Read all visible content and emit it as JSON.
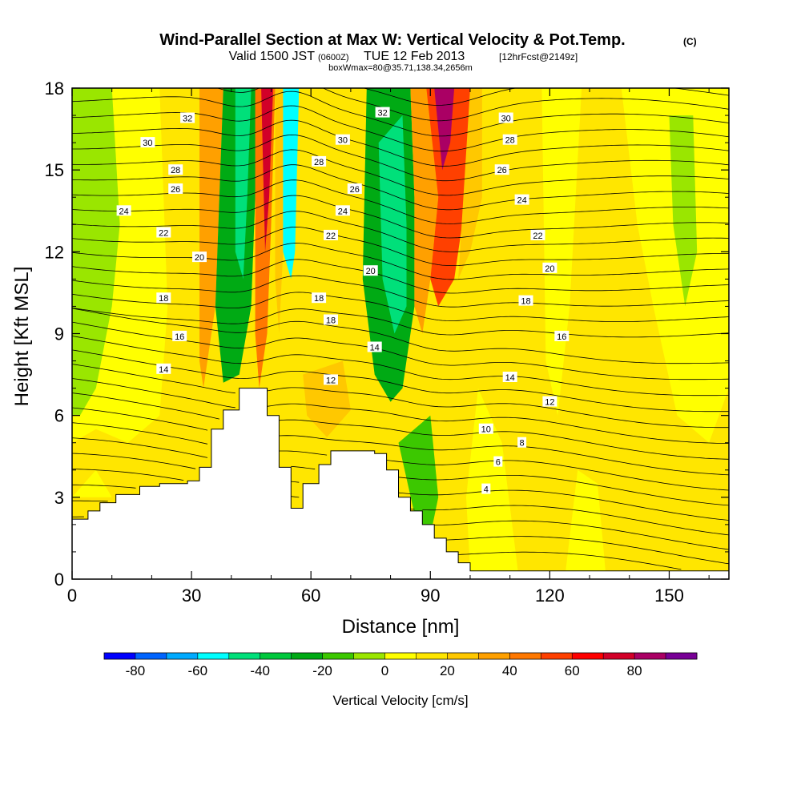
{
  "chart_data": {
    "type": "heatmap",
    "title_main": "Wind-Parallel Section at Max W: Vertical Velocity & Pot.Temp.",
    "title_mark": "(C)",
    "subtitle_valid": "Valid 1500 JST",
    "subtitle_zulu": "(0600Z)",
    "subtitle_date": "TUE 12 Feb 2013",
    "subtitle_fcst": "[12hrFcst@2149z]",
    "subtitle_box": "boxWmax=80@35.71,138.34,2656m",
    "xlabel": "Distance [nm]",
    "ylabel": "Height [Kft MSL]",
    "xlim": [
      0,
      165
    ],
    "ylim": [
      0,
      18
    ],
    "xticks": [
      "0",
      "30",
      "60",
      "90",
      "120",
      "150"
    ],
    "yticks": [
      "0",
      "3",
      "6",
      "9",
      "12",
      "15",
      "18"
    ],
    "colorbar": {
      "label": "Vertical Velocity [cm/s]",
      "ticks": [
        "-80",
        "-60",
        "-40",
        "-20",
        "0",
        "20",
        "40",
        "60",
        "80"
      ],
      "colors": [
        "#0000ff",
        "#0064ff",
        "#00aaff",
        "#00ffff",
        "#00e07a",
        "#00c83c",
        "#00aa14",
        "#3cc800",
        "#9ae600",
        "#ffff00",
        "#ffe600",
        "#ffc800",
        "#ffa000",
        "#ff7800",
        "#ff4000",
        "#ff0000",
        "#d20028",
        "#aa0064",
        "#780096"
      ]
    },
    "terrain": [
      [
        0,
        2.2
      ],
      [
        4,
        2.2
      ],
      [
        4,
        2.5
      ],
      [
        7,
        2.5
      ],
      [
        7,
        2.8
      ],
      [
        11,
        2.8
      ],
      [
        11,
        3.1
      ],
      [
        17,
        3.1
      ],
      [
        17,
        3.4
      ],
      [
        22,
        3.4
      ],
      [
        22,
        3.5
      ],
      [
        29,
        3.5
      ],
      [
        29,
        3.6
      ],
      [
        32,
        3.6
      ],
      [
        32,
        4.1
      ],
      [
        35,
        4.1
      ],
      [
        35,
        5.5
      ],
      [
        38,
        5.5
      ],
      [
        38,
        6.2
      ],
      [
        42,
        6.2
      ],
      [
        42,
        7.0
      ],
      [
        49,
        7.0
      ],
      [
        49,
        6.0
      ],
      [
        52,
        6.0
      ],
      [
        52,
        4.1
      ],
      [
        55,
        4.1
      ],
      [
        55,
        2.6
      ],
      [
        58,
        2.6
      ],
      [
        58,
        3.5
      ],
      [
        62,
        3.5
      ],
      [
        62,
        4.2
      ],
      [
        65,
        4.2
      ],
      [
        65,
        4.7
      ],
      [
        76,
        4.7
      ],
      [
        76,
        4.6
      ],
      [
        79,
        4.6
      ],
      [
        79,
        4.0
      ],
      [
        82,
        4.0
      ],
      [
        82,
        3.0
      ],
      [
        85,
        3.0
      ],
      [
        85,
        2.5
      ],
      [
        88,
        2.5
      ],
      [
        88,
        2.0
      ],
      [
        91,
        2.0
      ],
      [
        91,
        1.5
      ],
      [
        94,
        1.5
      ],
      [
        94,
        1.0
      ],
      [
        97,
        1.0
      ],
      [
        97,
        0.6
      ],
      [
        100,
        0.6
      ],
      [
        100,
        0.3
      ],
      [
        165,
        0.3
      ]
    ],
    "wfield_regions": [
      {
        "value": 10,
        "polygon": [
          [
            0,
            0
          ],
          [
            165,
            0
          ],
          [
            165,
            18
          ],
          [
            0,
            18
          ]
        ]
      },
      {
        "value": 2,
        "polygon": [
          [
            0,
            18
          ],
          [
            22,
            18
          ],
          [
            24,
            10
          ],
          [
            22,
            6
          ],
          [
            14,
            5
          ],
          [
            6,
            5.5
          ],
          [
            0,
            5
          ]
        ]
      },
      {
        "value": -8,
        "polygon": [
          [
            0,
            18
          ],
          [
            10,
            18
          ],
          [
            12,
            13
          ],
          [
            10,
            10
          ],
          [
            6,
            7
          ],
          [
            2,
            6
          ],
          [
            0,
            6
          ]
        ]
      },
      {
        "value": 12,
        "polygon": [
          [
            22,
            18
          ],
          [
            30,
            18
          ],
          [
            30,
            14
          ],
          [
            32,
            10
          ],
          [
            29,
            7
          ],
          [
            26,
            7
          ],
          [
            24,
            10
          ]
        ]
      },
      {
        "value": 30,
        "polygon": [
          [
            32,
            18
          ],
          [
            38,
            18
          ],
          [
            36,
            10
          ],
          [
            33,
            7
          ],
          [
            32,
            8
          ]
        ]
      },
      {
        "value": -28,
        "polygon": [
          [
            38,
            18
          ],
          [
            47,
            18
          ],
          [
            46,
            14
          ],
          [
            45,
            10
          ],
          [
            42,
            7.5
          ],
          [
            38,
            7.2
          ],
          [
            36,
            10
          ]
        ]
      },
      {
        "value": -48,
        "polygon": [
          [
            41,
            18
          ],
          [
            45,
            18
          ],
          [
            44,
            14
          ],
          [
            43,
            11
          ],
          [
            41,
            12
          ]
        ]
      },
      {
        "value": 45,
        "polygon": [
          [
            46,
            18
          ],
          [
            51,
            18
          ],
          [
            50,
            13
          ],
          [
            49,
            9
          ],
          [
            47,
            7
          ],
          [
            46,
            9
          ]
        ]
      },
      {
        "value": 70,
        "polygon": [
          [
            47.5,
            18
          ],
          [
            50.5,
            18
          ],
          [
            49.5,
            14
          ],
          [
            48.5,
            12
          ],
          [
            48,
            15
          ]
        ]
      },
      {
        "value": 22,
        "polygon": [
          [
            51,
            18
          ],
          [
            53,
            18
          ],
          [
            53,
            12
          ],
          [
            52,
            9
          ],
          [
            51,
            11
          ]
        ]
      },
      {
        "value": -52,
        "polygon": [
          [
            53,
            18
          ],
          [
            57,
            18
          ],
          [
            57,
            13
          ],
          [
            55,
            11
          ],
          [
            53,
            12
          ]
        ]
      },
      {
        "value": 12,
        "polygon": [
          [
            57,
            18
          ],
          [
            74,
            18
          ],
          [
            74,
            14
          ],
          [
            72,
            9
          ],
          [
            70,
            6.2
          ],
          [
            64,
            5.5
          ],
          [
            58,
            6.5
          ],
          [
            56,
            9
          ],
          [
            56,
            12
          ]
        ]
      },
      {
        "value": 20,
        "polygon": [
          [
            58,
            7.5
          ],
          [
            68,
            8.0
          ],
          [
            70,
            6.2
          ],
          [
            64,
            5.2
          ],
          [
            59,
            6.0
          ]
        ]
      },
      {
        "value": -22,
        "polygon": [
          [
            74,
            18
          ],
          [
            85,
            18
          ],
          [
            86,
            14
          ],
          [
            86,
            10
          ],
          [
            83,
            7.0
          ],
          [
            80,
            6.5
          ],
          [
            76,
            7.5
          ],
          [
            73,
            11
          ]
        ]
      },
      {
        "value": -45,
        "polygon": [
          [
            77,
            16
          ],
          [
            83,
            17
          ],
          [
            84,
            13
          ],
          [
            84,
            10
          ],
          [
            81,
            9
          ],
          [
            78,
            11
          ]
        ]
      },
      {
        "value": 30,
        "polygon": [
          [
            85,
            18
          ],
          [
            92,
            18
          ],
          [
            92,
            14
          ],
          [
            90,
            11
          ],
          [
            88,
            9
          ],
          [
            86,
            10
          ],
          [
            86,
            14
          ]
        ]
      },
      {
        "value": 58,
        "polygon": [
          [
            89,
            18
          ],
          [
            100,
            18
          ],
          [
            99,
            14
          ],
          [
            96,
            11
          ],
          [
            92,
            10
          ],
          [
            90,
            11
          ],
          [
            92,
            14
          ]
        ]
      },
      {
        "value": 85,
        "polygon": [
          [
            91,
            18
          ],
          [
            96,
            18
          ],
          [
            95,
            16
          ],
          [
            93,
            15
          ]
        ]
      },
      {
        "value": 22,
        "polygon": [
          [
            100,
            18
          ],
          [
            103,
            18
          ],
          [
            103,
            14
          ],
          [
            100,
            12
          ],
          [
            97,
            11
          ]
        ]
      },
      {
        "value": 2,
        "polygon": [
          [
            118,
            18
          ],
          [
            128,
            18
          ],
          [
            125,
            10
          ],
          [
            122,
            6
          ],
          [
            119,
            8
          ]
        ]
      },
      {
        "value": 2,
        "polygon": [
          [
            138,
            18
          ],
          [
            165,
            18
          ],
          [
            165,
            7
          ],
          [
            160,
            5
          ],
          [
            152,
            6
          ],
          [
            146,
            10
          ],
          [
            142,
            13
          ]
        ]
      },
      {
        "value": -8,
        "polygon": [
          [
            150,
            17
          ],
          [
            156,
            17
          ],
          [
            157,
            12
          ],
          [
            154,
            10
          ],
          [
            151,
            13
          ]
        ]
      },
      {
        "value": -12,
        "polygon": [
          [
            82,
            5
          ],
          [
            90,
            6
          ],
          [
            92,
            3
          ],
          [
            90,
            1.6
          ],
          [
            86,
            2.4
          ]
        ]
      },
      {
        "value": 2,
        "polygon": [
          [
            100,
            0.3
          ],
          [
            112,
            0.3
          ],
          [
            108,
            5
          ],
          [
            102,
            7
          ],
          [
            99,
            3
          ]
        ]
      },
      {
        "value": 2,
        "polygon": [
          [
            124,
            0.3
          ],
          [
            134,
            0.3
          ],
          [
            132,
            3.5
          ],
          [
            127,
            4
          ]
        ]
      },
      {
        "value": 2,
        "polygon": [
          [
            0,
            3
          ],
          [
            6,
            4
          ],
          [
            10,
            3
          ]
        ]
      }
    ],
    "theta_contour_labels": [
      {
        "label": "32",
        "x": 29,
        "y": 16.9
      },
      {
        "label": "30",
        "x": 19,
        "y": 16.0
      },
      {
        "label": "28",
        "x": 26,
        "y": 15.0
      },
      {
        "label": "26",
        "x": 26,
        "y": 14.3
      },
      {
        "label": "24",
        "x": 13,
        "y": 13.5
      },
      {
        "label": "22",
        "x": 23,
        "y": 12.7
      },
      {
        "label": "20",
        "x": 32,
        "y": 11.8
      },
      {
        "label": "18",
        "x": 23,
        "y": 10.3
      },
      {
        "label": "16",
        "x": 27,
        "y": 8.9
      },
      {
        "label": "14",
        "x": 23,
        "y": 7.7
      },
      {
        "label": "32",
        "x": 78,
        "y": 17.1
      },
      {
        "label": "30",
        "x": 68,
        "y": 16.1
      },
      {
        "label": "28",
        "x": 62,
        "y": 15.3
      },
      {
        "label": "26",
        "x": 71,
        "y": 14.3
      },
      {
        "label": "24",
        "x": 68,
        "y": 13.5
      },
      {
        "label": "22",
        "x": 65,
        "y": 12.6
      },
      {
        "label": "20",
        "x": 75,
        "y": 11.3
      },
      {
        "label": "18",
        "x": 62,
        "y": 10.3
      },
      {
        "label": "18",
        "x": 65,
        "y": 9.5
      },
      {
        "label": "14",
        "x": 76,
        "y": 8.5
      },
      {
        "label": "12",
        "x": 65,
        "y": 7.3
      },
      {
        "label": "30",
        "x": 109,
        "y": 16.9
      },
      {
        "label": "28",
        "x": 110,
        "y": 16.1
      },
      {
        "label": "26",
        "x": 108,
        "y": 15.0
      },
      {
        "label": "24",
        "x": 113,
        "y": 13.9
      },
      {
        "label": "22",
        "x": 117,
        "y": 12.6
      },
      {
        "label": "20",
        "x": 120,
        "y": 11.4
      },
      {
        "label": "18",
        "x": 114,
        "y": 10.2
      },
      {
        "label": "16",
        "x": 123,
        "y": 8.9
      },
      {
        "label": "14",
        "x": 110,
        "y": 7.4
      },
      {
        "label": "12",
        "x": 120,
        "y": 6.5
      },
      {
        "label": "10",
        "x": 104,
        "y": 5.5
      },
      {
        "label": "8",
        "x": 113,
        "y": 5.0
      },
      {
        "label": "6",
        "x": 107,
        "y": 4.3
      },
      {
        "label": "4",
        "x": 104,
        "y": 3.3
      }
    ],
    "grid": false
  }
}
